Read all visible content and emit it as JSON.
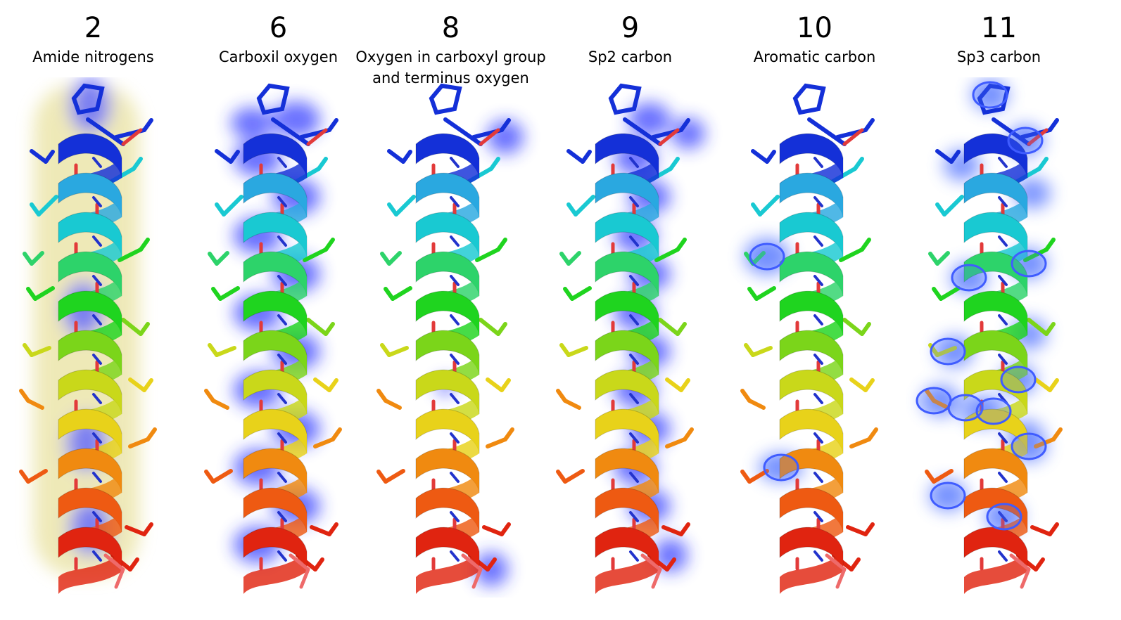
{
  "panels": [
    {
      "number": "2",
      "label": "Amide nitrogens",
      "glow": "#e9e2a0",
      "glow_blob": "mixed"
    },
    {
      "number": "6",
      "label": "Carboxil oxygen",
      "glow": "#2a35ff",
      "glow_blob": "backbone"
    },
    {
      "number": "8",
      "label": "Oxygen in carboxyl group\nand terminus oxygen",
      "glow": "#2a35ff",
      "glow_blob": "termini"
    },
    {
      "number": "9",
      "label": "Sp2 carbon",
      "glow": "#2a35ff",
      "glow_blob": "backbone-right"
    },
    {
      "number": "10",
      "label": "Aromatic carbon",
      "glow": "#4a6cff",
      "glow_blob": "sparse"
    },
    {
      "number": "11",
      "label": "Sp3 carbon",
      "glow": "#4a6cff",
      "glow_blob": "sidechains"
    }
  ],
  "helix_colors": [
    "#1430d8",
    "#2aa8e0",
    "#19c9d2",
    "#2dd36a",
    "#1fd41f",
    "#7bd51a",
    "#c9d81a",
    "#e8d21a",
    "#f08a10",
    "#ee5a12",
    "#e02410"
  ],
  "stick_accent": {
    "oxygen": "#e23a3a",
    "nitrogen": "#2233cc"
  }
}
